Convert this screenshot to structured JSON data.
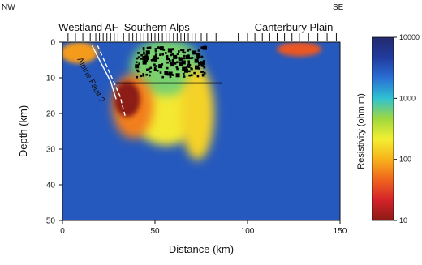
{
  "chart_data": {
    "type": "heatmap",
    "title": "",
    "xlabel": "Distance (km)",
    "ylabel": "Depth (km)",
    "xlim": [
      0,
      150
    ],
    "ylim": [
      50,
      0
    ],
    "x_ticks": [
      0,
      50,
      100,
      150
    ],
    "y_ticks": [
      0,
      10,
      20,
      30,
      40,
      50
    ],
    "corner_labels": {
      "left": "NW",
      "right": "SE"
    },
    "region_labels": [
      {
        "text": "Westland AF",
        "x": 14
      },
      {
        "text": "Southern Alps",
        "x": 51
      },
      {
        "text": "Canterbury Plain",
        "x": 125
      }
    ],
    "annotations": [
      {
        "text": "Alpine Fault ?"
      }
    ],
    "colorbar": {
      "label": "Resistivity (ohm m)",
      "scale": "log",
      "ticks": [
        10,
        100,
        1000,
        10000
      ],
      "colors": [
        "#8b1a14",
        "#d4232a",
        "#f0641e",
        "#f7b21a",
        "#f4ef32",
        "#9ed83f",
        "#2fc2d2",
        "#2a6fd4",
        "#213b9e",
        "#232a6e"
      ]
    },
    "background_resistivity": 3000,
    "resistivity_features": [
      {
        "x": 35,
        "depth": 16,
        "rx": 7,
        "rdepth": 5,
        "resistivity": 10,
        "description_free": true
      },
      {
        "x": 38,
        "depth": 18,
        "rx": 11,
        "rdepth": 9,
        "resistivity": 60
      },
      {
        "x": 56,
        "depth": 19,
        "rx": 19,
        "rdepth": 10,
        "resistivity": 200
      },
      {
        "x": 73,
        "depth": 20,
        "rx": 9,
        "rdepth": 13,
        "resistivity": 150
      },
      {
        "x": 56,
        "depth": 7,
        "rx": 19,
        "rdepth": 8,
        "resistivity": 600
      },
      {
        "x": 9,
        "depth": 3,
        "rx": 10,
        "rdepth": 3,
        "resistivity": 80
      },
      {
        "x": 128,
        "depth": 2,
        "rx": 12,
        "rdepth": 2,
        "resistivity": 40
      }
    ],
    "stations_x": [
      3,
      7,
      11,
      15,
      18,
      20,
      22,
      24,
      26,
      28,
      30,
      33,
      36,
      38,
      40,
      42,
      44,
      46,
      48,
      50,
      52,
      54,
      56,
      58,
      60,
      62,
      64,
      66,
      68,
      70,
      72,
      75,
      78,
      83,
      95,
      100,
      104,
      108,
      112,
      116,
      120,
      124,
      128,
      133,
      138,
      143,
      148
    ],
    "hypocenter_cloud": {
      "x_range": [
        40,
        77
      ],
      "depth_range": [
        1.5,
        10
      ],
      "count": 170
    },
    "seismic_lines": [
      {
        "x_range": [
          29,
          86
        ],
        "depth": 11.5
      }
    ],
    "fault_lines": [
      {
        "points": [
          [
            16,
            1
          ],
          [
            21,
            6
          ],
          [
            26,
            11
          ],
          [
            29,
            16
          ]
        ]
      },
      {
        "points": [
          [
            19,
            1
          ],
          [
            25,
            8
          ],
          [
            31,
            15
          ],
          [
            34,
            21
          ]
        ]
      }
    ]
  }
}
